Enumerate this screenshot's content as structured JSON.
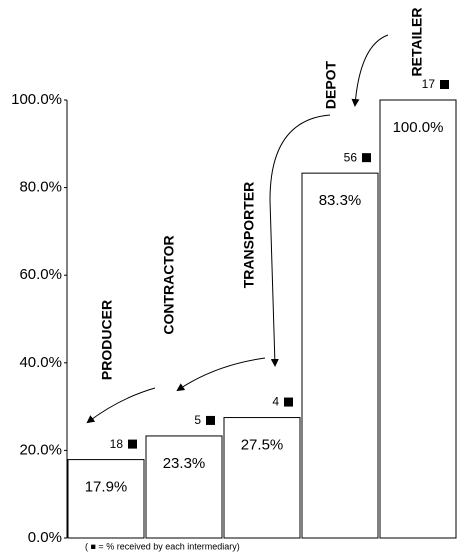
{
  "chart_data": {
    "type": "bar",
    "categories": [
      "PRODUCER",
      "CONTRACTOR",
      "TRANSPORTER",
      "DEPOT",
      "RETAILER"
    ],
    "values": [
      17.9,
      23.3,
      27.5,
      83.3,
      100.0
    ],
    "value_labels": [
      "17.9%",
      "23.3%",
      "27.5%",
      "83.3%",
      "100.0%"
    ],
    "shares": [
      18,
      5,
      4,
      56,
      17
    ],
    "ylim": [
      0,
      100
    ],
    "yticks": [
      {
        "value": 0,
        "label": "0.0%"
      },
      {
        "value": 20,
        "label": "20.0%"
      },
      {
        "value": 40,
        "label": "40.0%"
      },
      {
        "value": 60,
        "label": "60.0%"
      },
      {
        "value": 80,
        "label": "80.0%"
      },
      {
        "value": 100,
        "label": "100.0%"
      }
    ],
    "color": "#ffffff",
    "footnote": "( ■ = % received by each intermediary)"
  }
}
